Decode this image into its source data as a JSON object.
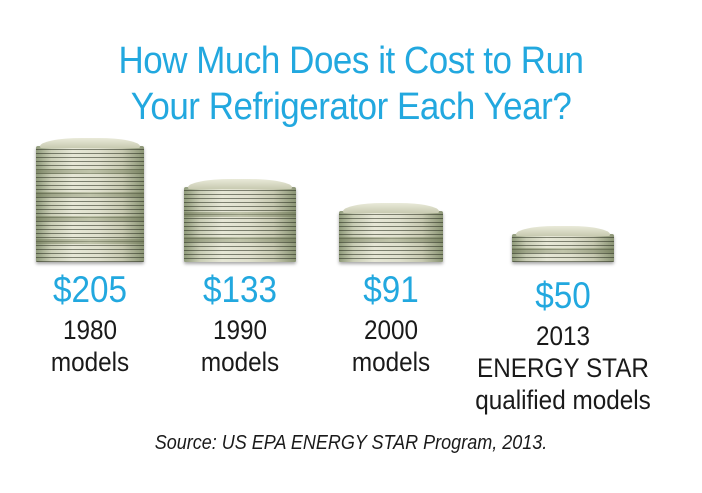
{
  "title_lines": [
    "How Much Does it Cost to Run",
    "Your Refrigerator Each Year?"
  ],
  "source": "Source: US EPA ENERGY STAR Program, 2013.",
  "colors": {
    "accent": "#22a8df",
    "text": "#1a1a1a",
    "money": "#c9cdb5"
  },
  "chart_data": {
    "type": "bar",
    "title": "How Much Does it Cost to Run Your Refrigerator Each Year?",
    "categories": [
      "1980 models",
      "1990 models",
      "2000 models",
      "2013 ENERGY STAR qualified models"
    ],
    "values": [
      205,
      133,
      91,
      50
    ],
    "value_labels": [
      "$205",
      "$133",
      "$91",
      "$50"
    ],
    "category_lines": [
      [
        "1980",
        "models"
      ],
      [
        "1990",
        "models"
      ],
      [
        "2000",
        "models"
      ],
      [
        "2013",
        "ENERGY STAR",
        "qualified models"
      ]
    ],
    "unit": "USD per year",
    "bar_style": "stack-of-money-icon",
    "grid": false,
    "legend": "none"
  }
}
